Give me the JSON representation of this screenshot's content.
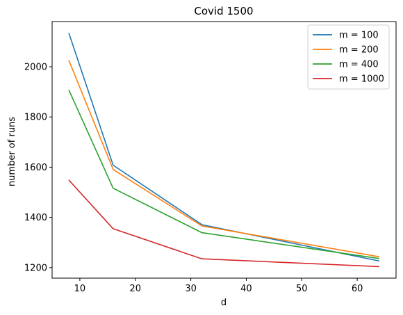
{
  "chart_data": {
    "type": "line",
    "title": "Covid 1500",
    "xlabel": "d",
    "ylabel": "number of runs",
    "x": [
      8,
      16,
      32,
      64
    ],
    "xlim": [
      5,
      67
    ],
    "ylim": [
      1158,
      2180
    ],
    "xticks": [
      10,
      20,
      30,
      40,
      50,
      60
    ],
    "yticks": [
      1200,
      1400,
      1600,
      1800,
      2000
    ],
    "grid": false,
    "legend_position": "top-right",
    "series": [
      {
        "name": "m = 100",
        "color": "#1f77b4",
        "values": [
          2135,
          1608,
          1371,
          1226
        ]
      },
      {
        "name": "m = 200",
        "color": "#ff7f0e",
        "values": [
          2026,
          1591,
          1366,
          1243
        ]
      },
      {
        "name": "m = 400",
        "color": "#2ca02c",
        "values": [
          1908,
          1516,
          1339,
          1236
        ]
      },
      {
        "name": "m = 1000",
        "color": "#d62728",
        "values": [
          1549,
          1355,
          1235,
          1204
        ]
      }
    ]
  }
}
